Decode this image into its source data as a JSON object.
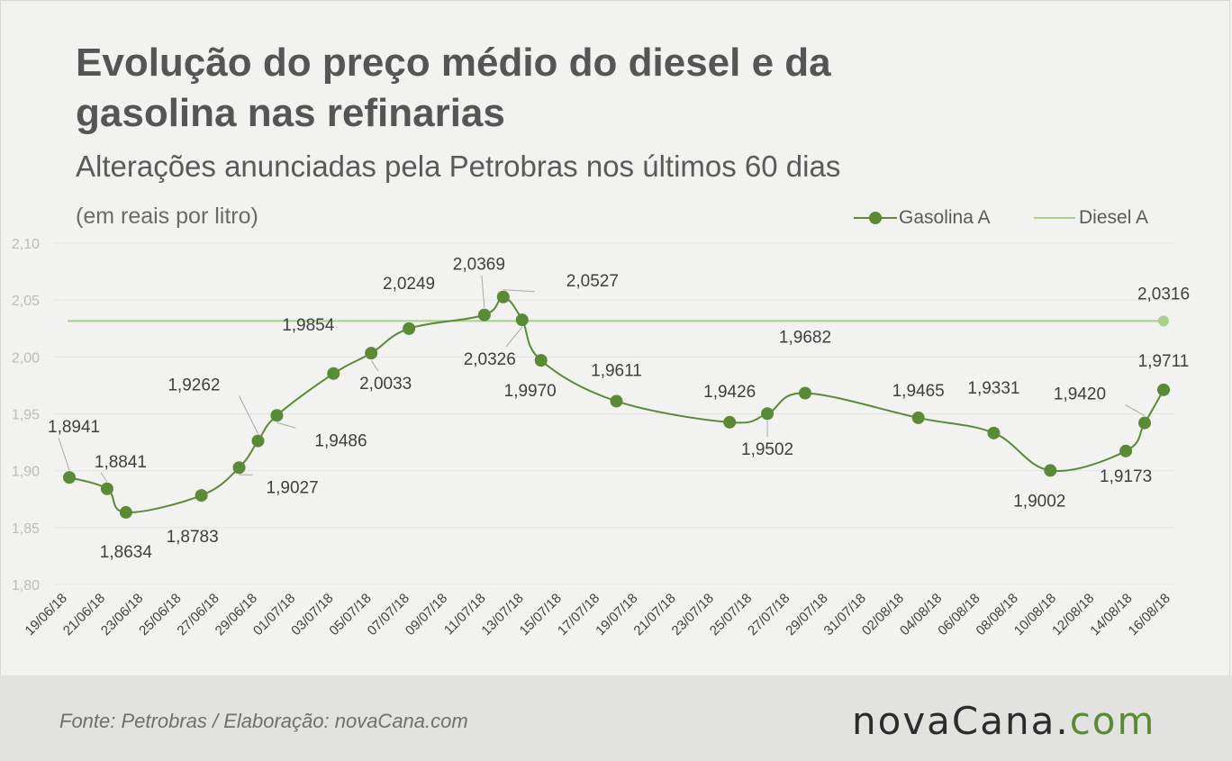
{
  "header": {
    "title": "Evolução do preço médio do diesel e da gasolina nas refinarias",
    "subtitle": "Alterações anunciadas pela Petrobras nos últimos 60 dias",
    "unit": "(em reais por litro)"
  },
  "legend": {
    "gasolina_label": "Gasolina A",
    "diesel_label": "Diesel A"
  },
  "footer": {
    "source": "Fonte:  Petrobras  / Elaboração:  novaCana.com",
    "logo_main": "novaCana",
    "logo_dot": ".",
    "logo_com": "com"
  },
  "colors": {
    "gasolina": "#5b8a36",
    "diesel": "#a8d08d",
    "gridline": "#e4e4e2",
    "leader": "#a9a9a9"
  },
  "chart_data": {
    "type": "line",
    "ylim": [
      1.8,
      2.1
    ],
    "yticks": [
      "1,80",
      "1,85",
      "1,90",
      "1,95",
      "2,00",
      "2,05",
      "2,10"
    ],
    "yticks_values": [
      1.8,
      1.85,
      1.9,
      1.95,
      2.0,
      2.05,
      2.1
    ],
    "x_date_range": [
      "2018-06-19",
      "2018-08-16"
    ],
    "x_tick_labels": [
      "19/06/18",
      "21/06/18",
      "23/06/18",
      "25/06/18",
      "27/06/18",
      "29/06/18",
      "01/07/18",
      "03/07/18",
      "05/07/18",
      "07/07/18",
      "09/07/18",
      "11/07/18",
      "13/07/18",
      "15/07/18",
      "17/07/18",
      "19/07/18",
      "21/07/18",
      "23/07/18",
      "25/07/18",
      "27/07/18",
      "29/07/18",
      "31/07/18",
      "02/08/18",
      "04/08/18",
      "06/08/18",
      "08/08/18",
      "10/08/18",
      "12/08/18",
      "14/08/18",
      "16/08/18"
    ],
    "series": [
      {
        "name": "Gasolina A",
        "points": [
          {
            "x": "2018-06-19",
            "y": 1.8941,
            "label": "1,8941"
          },
          {
            "x": "2018-06-21",
            "y": 1.8841,
            "label": "1,8841"
          },
          {
            "x": "2018-06-22",
            "y": 1.8634,
            "label": "1,8634"
          },
          {
            "x": "2018-06-26",
            "y": 1.8783,
            "label": "1,8783"
          },
          {
            "x": "2018-06-28",
            "y": 1.9027,
            "label": "1,9027"
          },
          {
            "x": "2018-06-29",
            "y": 1.9262,
            "label": "1,9262"
          },
          {
            "x": "2018-06-30",
            "y": 1.9486,
            "label": "1,9486"
          },
          {
            "x": "2018-07-03",
            "y": 1.9854,
            "label": "1,9854"
          },
          {
            "x": "2018-07-05",
            "y": 2.0033,
            "label": "2,0033"
          },
          {
            "x": "2018-07-07",
            "y": 2.0249,
            "label": "2,0249"
          },
          {
            "x": "2018-07-11",
            "y": 2.0369,
            "label": "2,0369"
          },
          {
            "x": "2018-07-12",
            "y": 2.0527,
            "label": "2,0527"
          },
          {
            "x": "2018-07-13",
            "y": 2.0326,
            "label": "2,0326"
          },
          {
            "x": "2018-07-14",
            "y": 1.997,
            "label": "1,9970"
          },
          {
            "x": "2018-07-18",
            "y": 1.9611,
            "label": "1,9611"
          },
          {
            "x": "2018-07-24",
            "y": 1.9426,
            "label": "1,9426"
          },
          {
            "x": "2018-07-26",
            "y": 1.9502,
            "label": "1,9502"
          },
          {
            "x": "2018-07-28",
            "y": 1.9682,
            "label": "1,9682"
          },
          {
            "x": "2018-08-03",
            "y": 1.9465,
            "label": "1,9465"
          },
          {
            "x": "2018-08-07",
            "y": 1.9331,
            "label": "1,9331"
          },
          {
            "x": "2018-08-10",
            "y": 1.9002,
            "label": "1,9002"
          },
          {
            "x": "2018-08-14",
            "y": 1.9173,
            "label": "1,9173"
          },
          {
            "x": "2018-08-15",
            "y": 1.942,
            "label": "1,9420"
          },
          {
            "x": "2018-08-16",
            "y": 1.9711,
            "label": "1,9711"
          }
        ]
      },
      {
        "name": "Diesel A",
        "value": 2.0316,
        "label": "2,0316",
        "x_range": [
          "2018-06-19",
          "2018-08-16"
        ]
      }
    ]
  }
}
